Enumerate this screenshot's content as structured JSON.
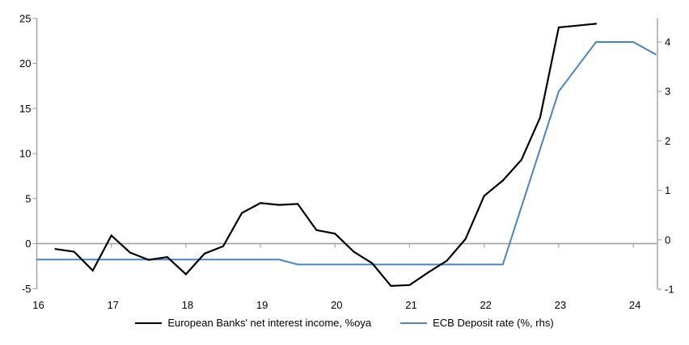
{
  "chart_data": {
    "type": "line",
    "title": "",
    "x_axis": {
      "tick_labels": [
        "16",
        "17",
        "18",
        "19",
        "20",
        "21",
        "22",
        "23",
        "24"
      ],
      "tick_years": [
        16,
        17,
        18,
        19,
        20,
        21,
        22,
        23,
        24
      ],
      "range": [
        16,
        24.33
      ],
      "label_position": "low"
    },
    "left_axis": {
      "ticks": [
        25,
        20,
        15,
        10,
        5,
        0,
        -5
      ],
      "range": [
        -5.1,
        25.1
      ],
      "side": "left"
    },
    "right_axis": {
      "ticks": [
        4,
        3,
        2,
        1,
        0,
        -1
      ],
      "range": [
        -1.05,
        4.5
      ],
      "side": "right"
    },
    "grid": "zero-line-only",
    "legend_position": "bottom-center",
    "series": [
      {
        "name": "European Banks' net interest income, %oya",
        "axis": "left",
        "color": "#000000",
        "x": [
          16.25,
          16.5,
          16.75,
          17.0,
          17.25,
          17.5,
          17.75,
          18.0,
          18.25,
          18.5,
          18.75,
          19.0,
          19.25,
          19.5,
          19.75,
          20.0,
          20.25,
          20.5,
          20.75,
          21.0,
          21.25,
          21.5,
          21.75,
          22.0,
          22.25,
          22.5,
          22.75,
          23.0,
          23.25,
          23.5
        ],
        "values": [
          -0.6,
          -0.9,
          -3.0,
          0.9,
          -1.0,
          -1.8,
          -1.5,
          -3.4,
          -1.1,
          -0.3,
          3.4,
          4.5,
          4.3,
          4.4,
          1.5,
          1.1,
          -0.9,
          -2.2,
          -4.7,
          -4.6,
          -3.2,
          -1.9,
          0.5,
          5.3,
          7.0,
          9.3,
          14.0,
          24.0,
          24.2,
          24.4
        ]
      },
      {
        "name": "ECB Deposit rate (%, rhs)",
        "axis": "right",
        "color": "#4a84c4",
        "x": [
          16.0,
          19.25,
          19.5,
          22.25,
          23.0,
          23.5,
          24.0,
          24.3
        ],
        "values": [
          -0.4,
          -0.4,
          -0.5,
          -0.5,
          3.0,
          4.0,
          4.0,
          3.75
        ]
      }
    ]
  },
  "colors": {
    "axis_gray": "#a6a6a6",
    "background": "#ffffff",
    "text": "#000000",
    "series_black": "#000000",
    "series_blue": "#4a84c4"
  }
}
